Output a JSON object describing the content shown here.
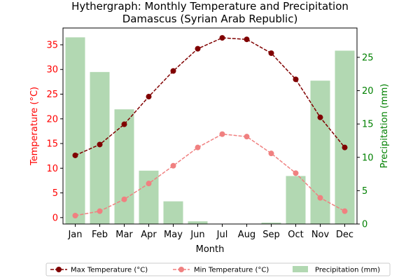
{
  "chart_data": {
    "type": "bar+line",
    "title": "Hythergraph: Monthly Temperature and Precipitation",
    "subtitle": "Damascus (Syrian Arab Republic)",
    "xlabel": "Month",
    "ylabel_left": "Temperature (°C)",
    "ylabel_right": "Precipitation (mm)",
    "categories": [
      "Jan",
      "Feb",
      "Mar",
      "Apr",
      "May",
      "Jun",
      "Jul",
      "Aug",
      "Sep",
      "Oct",
      "Nov",
      "Dec"
    ],
    "y_left_lim": [
      -1.3,
      38.4
    ],
    "y_left_ticks": [
      0,
      5,
      10,
      15,
      20,
      25,
      30,
      35
    ],
    "y_right_lim": [
      0,
      29.4
    ],
    "y_right_ticks": [
      0,
      5,
      10,
      15,
      20,
      25
    ],
    "series": [
      {
        "name": "Max Temperature (°C)",
        "axis": "left",
        "kind": "line",
        "color": "#800000",
        "values": [
          12.6,
          14.8,
          18.9,
          24.5,
          29.7,
          34.2,
          36.4,
          36.1,
          33.3,
          28.0,
          20.3,
          14.2
        ]
      },
      {
        "name": "Min Temperature (°C)",
        "axis": "left",
        "kind": "line",
        "color": "#f08080",
        "values": [
          0.4,
          1.3,
          3.7,
          6.9,
          10.5,
          14.2,
          16.9,
          16.4,
          13.0,
          9.0,
          4.0,
          1.3
        ]
      },
      {
        "name": "Precipitation (mm)",
        "axis": "right",
        "kind": "bar",
        "color": "#b2d8b2",
        "values": [
          28.0,
          22.8,
          17.2,
          8.0,
          3.4,
          0.4,
          0.0,
          0.0,
          0.2,
          7.2,
          21.5,
          26.0
        ]
      }
    ],
    "legend_position": "bottom",
    "grid": false
  }
}
